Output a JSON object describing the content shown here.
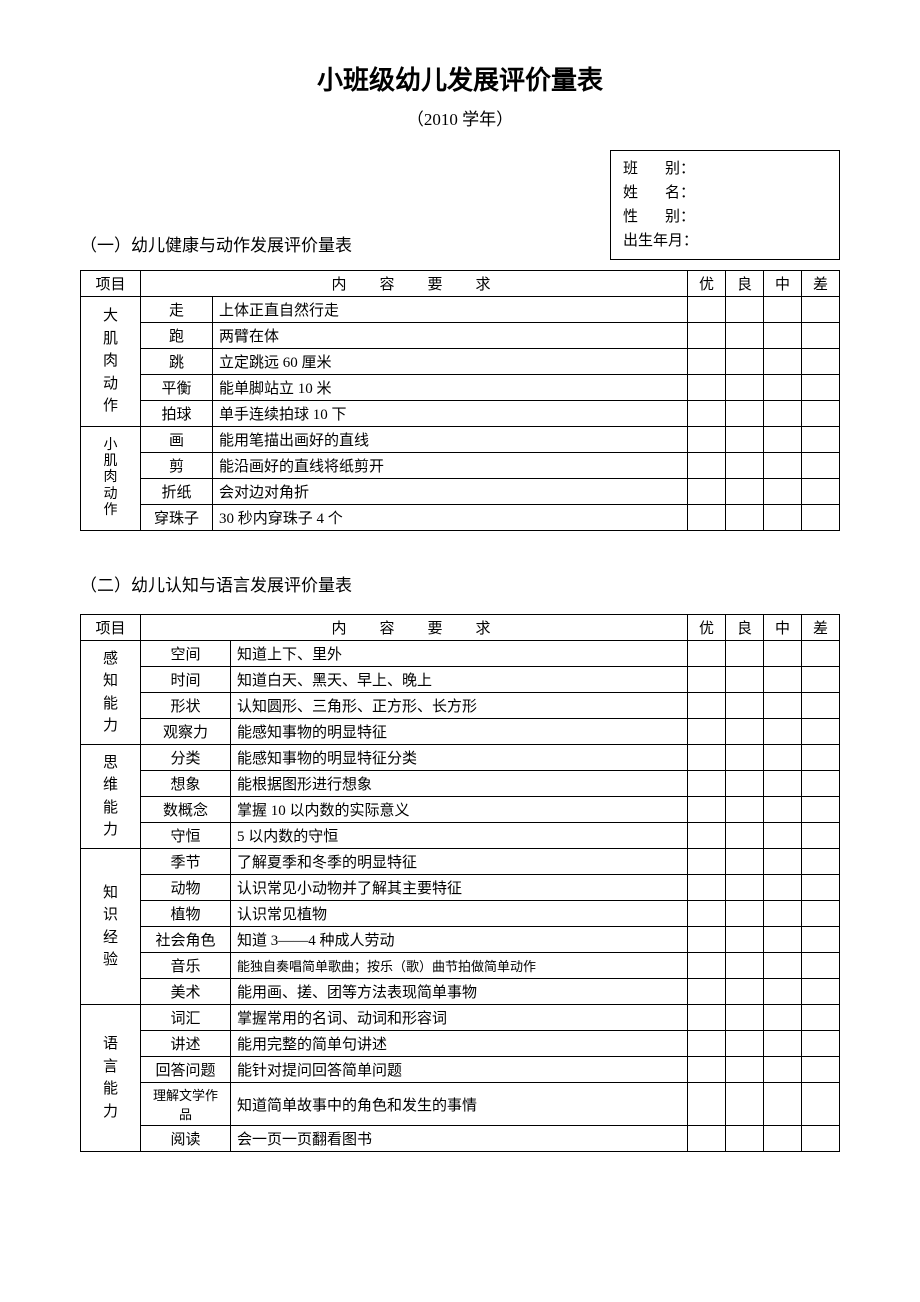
{
  "document": {
    "title": "小班级幼儿发展评价量表",
    "subtitle": "（2010 学年）",
    "background_color": "#ffffff",
    "text_color": "#000000",
    "border_color": "#000000",
    "title_fontsize": 26,
    "body_fontsize": 15
  },
  "info_box": {
    "lines": [
      {
        "label_prefix": "班",
        "label_suffix": "别：",
        "value": ""
      },
      {
        "label_prefix": "姓",
        "label_suffix": "名：",
        "value": ""
      },
      {
        "label_prefix": "性",
        "label_suffix": "别：",
        "value": ""
      },
      {
        "label_prefix": "出生年月：",
        "label_suffix": "",
        "value": ""
      }
    ]
  },
  "headers": {
    "project": "项目",
    "content": "内容要求",
    "ratings": [
      "优",
      "良",
      "中",
      "差"
    ]
  },
  "section1": {
    "heading": "（一）幼儿健康与动作发展评价量表",
    "groups": [
      {
        "label": "大肌肉动作",
        "rows": [
          {
            "sub": "走",
            "content": "上体正直自然行走"
          },
          {
            "sub": "跑",
            "content": "两臂在体"
          },
          {
            "sub": "跳",
            "content": "立定跳远 60 厘米"
          },
          {
            "sub": "平衡",
            "content": "能单脚站立 10 米"
          },
          {
            "sub": "拍球",
            "content": "单手连续拍球 10 下"
          }
        ]
      },
      {
        "label": "小肌肉动作",
        "rows": [
          {
            "sub": "画",
            "content": "能用笔描出画好的直线"
          },
          {
            "sub": "剪",
            "content": "能沿画好的直线将纸剪开"
          },
          {
            "sub": "折纸",
            "content": "会对边对角折"
          },
          {
            "sub": "穿珠子",
            "content": "30 秒内穿珠子 4 个"
          }
        ]
      }
    ]
  },
  "section2": {
    "heading": "（二）幼儿认知与语言发展评价量表",
    "groups": [
      {
        "label": "感知能力",
        "rows": [
          {
            "sub": "空间",
            "content": "知道上下、里外"
          },
          {
            "sub": "时间",
            "content": "知道白天、黑天、早上、晚上"
          },
          {
            "sub": "形状",
            "content": "认知圆形、三角形、正方形、长方形"
          },
          {
            "sub": "观察力",
            "content": "能感知事物的明显特征"
          }
        ]
      },
      {
        "label": "思维能力",
        "rows": [
          {
            "sub": "分类",
            "content": "能感知事物的明显特征分类"
          },
          {
            "sub": "想象",
            "content": "能根据图形进行想象"
          },
          {
            "sub": "数概念",
            "content": "掌握 10 以内数的实际意义"
          },
          {
            "sub": "守恒",
            "content": "5 以内数的守恒"
          }
        ]
      },
      {
        "label": "知识经验",
        "rows": [
          {
            "sub": "季节",
            "content": "了解夏季和冬季的明显特征"
          },
          {
            "sub": "动物",
            "content": "认识常见小动物并了解其主要特征"
          },
          {
            "sub": "植物",
            "content": "认识常见植物"
          },
          {
            "sub": "社会角色",
            "content": "知道 3——4 种成人劳动"
          },
          {
            "sub": "音乐",
            "content": "能独自奏唱简单歌曲；按乐（歌）曲节拍做简单动作",
            "small": true
          },
          {
            "sub": "美术",
            "content": "能用画、搓、团等方法表现简单事物"
          }
        ]
      },
      {
        "label": "语言能力",
        "rows": [
          {
            "sub": "词汇",
            "content": "掌握常用的名词、动词和形容词"
          },
          {
            "sub": "讲述",
            "content": "能用完整的简单句讲述"
          },
          {
            "sub": "回答问题",
            "content": "能针对提问回答简单问题"
          },
          {
            "sub": "理解文学作品",
            "content": "知道简单故事中的角色和发生的事情",
            "small_sub": true
          },
          {
            "sub": "阅读",
            "content": "会一页一页翻看图书"
          }
        ]
      }
    ]
  }
}
